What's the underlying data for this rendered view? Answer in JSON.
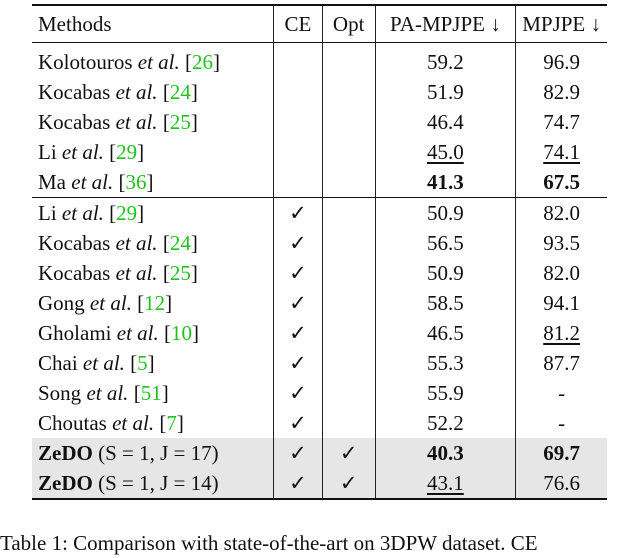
{
  "table": {
    "headers": {
      "methods": "Methods",
      "ce": "CE",
      "opt": "Opt",
      "pa_mpjpe": "PA-MPJPE ↓",
      "mpjpe": "MPJPE ↓"
    },
    "group1": [
      {
        "author": "Kolotouros ",
        "etal": "et al.",
        "cite": "26",
        "ce": "",
        "opt": "",
        "pa": "59.2",
        "mp": "96.9"
      },
      {
        "author": "Kocabas ",
        "etal": "et al.",
        "cite": "24",
        "ce": "",
        "opt": "",
        "pa": "51.9",
        "mp": "82.9"
      },
      {
        "author": "Kocabas ",
        "etal": "et al.",
        "cite": "25",
        "ce": "",
        "opt": "",
        "pa": "46.4",
        "mp": "74.7"
      },
      {
        "author": "Li ",
        "etal": "et al.",
        "cite": "29",
        "ce": "",
        "opt": "",
        "pa": "45.0",
        "mp": "74.1"
      },
      {
        "author": "Ma ",
        "etal": "et al.",
        "cite": "36",
        "ce": "",
        "opt": "",
        "pa": "41.3",
        "mp": "67.5"
      }
    ],
    "group2": [
      {
        "author": "Li ",
        "etal": "et al.",
        "cite": "29",
        "ce": "✓",
        "opt": "",
        "pa": "50.9",
        "mp": "82.0"
      },
      {
        "author": "Kocabas ",
        "etal": "et al.",
        "cite": "24",
        "ce": "✓",
        "opt": "",
        "pa": "56.5",
        "mp": "93.5"
      },
      {
        "author": "Kocabas ",
        "etal": "et al.",
        "cite": "25",
        "ce": "✓",
        "opt": "",
        "pa": "50.9",
        "mp": "82.0"
      },
      {
        "author": "Gong ",
        "etal": "et al.",
        "cite": "12",
        "ce": "✓",
        "opt": "",
        "pa": "58.5",
        "mp": "94.1"
      },
      {
        "author": "Gholami ",
        "etal": "et al.",
        "cite": "10",
        "ce": "✓",
        "opt": "",
        "pa": "46.5",
        "mp": "81.2"
      },
      {
        "author": "Chai ",
        "etal": "et al.",
        "cite": "5",
        "ce": "✓",
        "opt": "",
        "pa": "55.3",
        "mp": "87.7"
      },
      {
        "author": "Song ",
        "etal": "et al.",
        "cite": "51",
        "ce": "✓",
        "opt": "",
        "pa": "55.9",
        "mp": "-"
      },
      {
        "author": "Choutas ",
        "etal": "et al.",
        "cite": "7",
        "ce": "✓",
        "opt": "",
        "pa": "52.2",
        "mp": "-"
      }
    ],
    "ours": [
      {
        "name": "ZeDO",
        "config": "(S = 1, J = 17)",
        "ce": "✓",
        "opt": "✓",
        "pa": "40.3",
        "mp": "69.7"
      },
      {
        "name": "ZeDO",
        "config": "(S = 1, J = 14)",
        "ce": "✓",
        "opt": "✓",
        "pa": "43.1",
        "mp": "76.6"
      }
    ]
  },
  "caption": "Table 1: Comparison with state-of-the-art on 3DPW dataset. CE"
}
